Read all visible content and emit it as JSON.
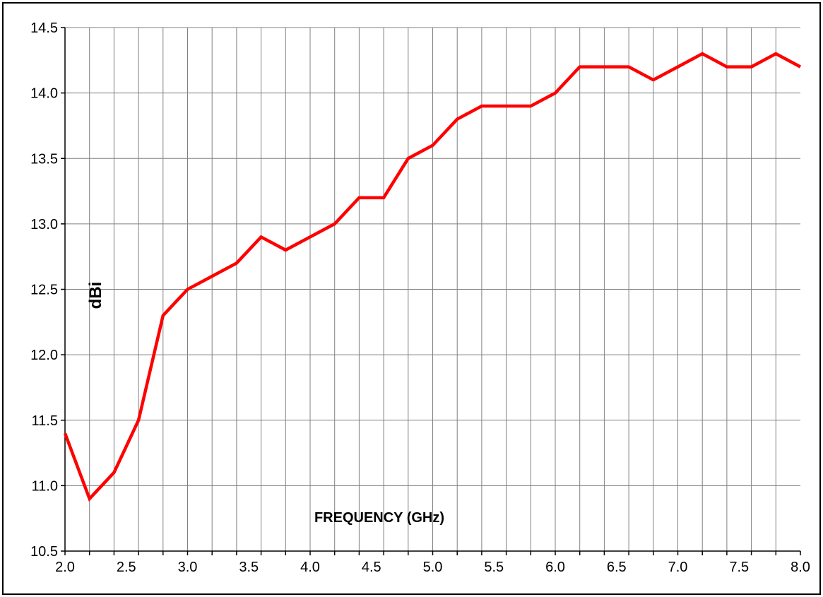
{
  "chart_data": {
    "type": "line",
    "xlabel": "FREQUENCY (GHz)",
    "ylabel": "dBi",
    "xlim": [
      2.0,
      8.0
    ],
    "ylim": [
      10.5,
      14.5
    ],
    "x_ticks": [
      "2.0",
      "2.5",
      "3.0",
      "3.5",
      "4.0",
      "4.5",
      "5.0",
      "5.5",
      "6.0",
      "6.5",
      "7.0",
      "7.5",
      "8.0"
    ],
    "y_ticks": [
      "10.5",
      "11.0",
      "11.5",
      "12.0",
      "12.5",
      "13.0",
      "13.5",
      "14.0",
      "14.5"
    ],
    "grid": true,
    "series": [
      {
        "color": "#ff0000",
        "x": [
          2.0,
          2.2,
          2.4,
          2.6,
          2.8,
          3.0,
          3.2,
          3.4,
          3.6,
          3.8,
          4.0,
          4.2,
          4.4,
          4.6,
          4.8,
          5.0,
          5.2,
          5.4,
          5.6,
          5.8,
          6.0,
          6.2,
          6.4,
          6.6,
          6.8,
          7.0,
          7.2,
          7.4,
          7.6,
          7.8,
          8.0
        ],
        "y": [
          11.4,
          10.9,
          11.1,
          11.5,
          12.3,
          12.5,
          12.6,
          12.7,
          12.9,
          12.8,
          12.9,
          13.0,
          13.2,
          13.2,
          13.5,
          13.6,
          13.8,
          13.9,
          13.9,
          13.9,
          14.0,
          14.2,
          14.2,
          14.2,
          14.1,
          14.2,
          14.3,
          14.2,
          14.2,
          14.3,
          14.2
        ]
      }
    ]
  },
  "colors": {
    "line": "#ff0000",
    "grid": "#808080",
    "axis": "#000000",
    "frame": "#000000"
  }
}
